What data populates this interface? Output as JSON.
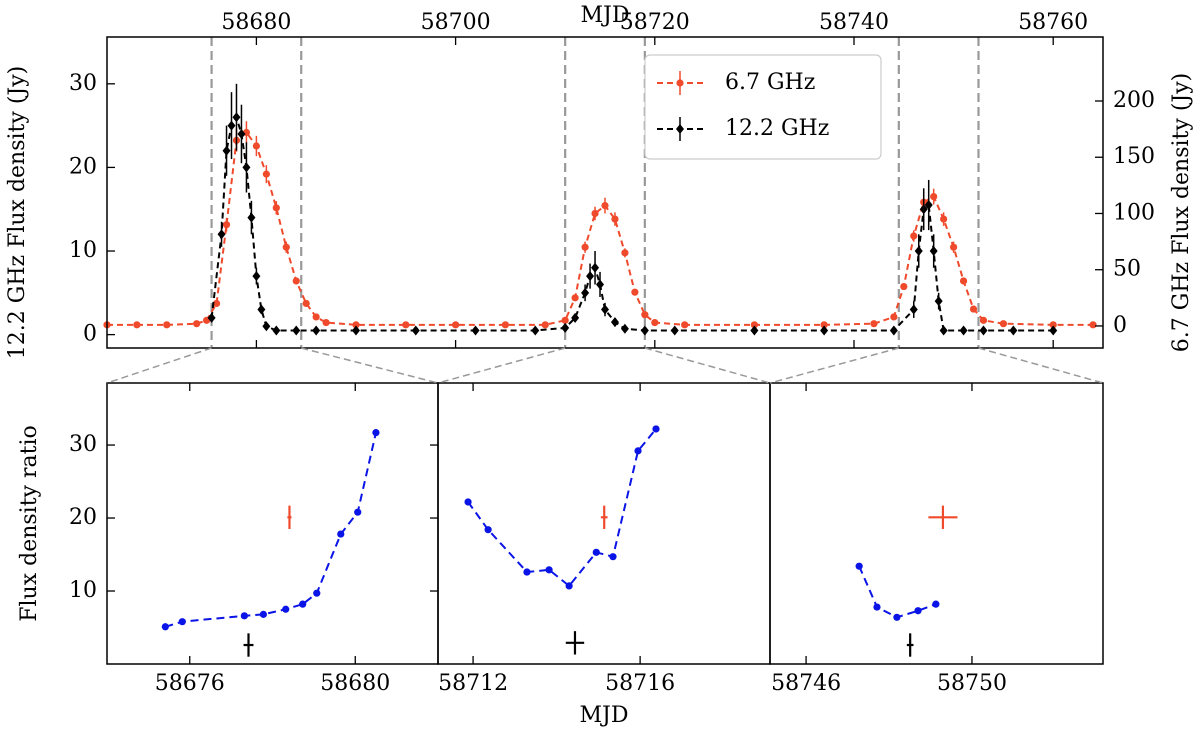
{
  "chart_data": [
    {
      "type": "line",
      "xlabel": "MJD",
      "ylabel": "12.2 GHz Flux density (Jy)",
      "y2label": "6.7 GHz Flux density (Jy)",
      "xlim": [
        58665,
        58765
      ],
      "ylim": [
        -1.6,
        35.6
      ],
      "y2lim": [
        -19.6,
        256.9
      ],
      "xticks": [
        58680,
        58700,
        58720,
        58740,
        58760
      ],
      "yticks": [
        0,
        10,
        20,
        30
      ],
      "y2ticks": [
        0,
        50,
        100,
        150,
        200
      ],
      "vlines": [
        58675.5,
        58684.5,
        58711,
        58719,
        58744.5,
        58752.5
      ],
      "legend": "upper center",
      "series": [
        {
          "name": "6.7 GHz",
          "color": "#f04a2c",
          "axis": "y2",
          "marker": "circle",
          "x": [
            58665,
            58668,
            58671,
            58674,
            58675,
            58676,
            58677,
            58678,
            58679,
            58680,
            58681,
            58682,
            58683,
            58684,
            58685,
            58686,
            58687,
            58690,
            58695,
            58700,
            58705,
            58709,
            58711,
            58712,
            58713,
            58714,
            58715,
            58716,
            58717,
            58718,
            58719,
            58720,
            58723,
            58730,
            58737,
            58742,
            58744,
            58745,
            58746,
            58747,
            58748,
            58749,
            58750,
            58751,
            58752,
            58753,
            58755,
            58760,
            58764
          ],
          "values": [
            1,
            1,
            1,
            2,
            5,
            20,
            90,
            165,
            172,
            160,
            135,
            105,
            70,
            40,
            20,
            8,
            3,
            1,
            1,
            1,
            1,
            1,
            5,
            25,
            70,
            100,
            107,
            95,
            65,
            30,
            10,
            3,
            1,
            1,
            1,
            2,
            8,
            35,
            80,
            110,
            115,
            95,
            70,
            40,
            15,
            5,
            2,
            1,
            1
          ],
          "errors": [
            1,
            1,
            1,
            1,
            1,
            2,
            6,
            10,
            10,
            9,
            8,
            6,
            5,
            3,
            2,
            1,
            1,
            1,
            1,
            1,
            1,
            1,
            1,
            2,
            5,
            6,
            7,
            6,
            4,
            2,
            1,
            1,
            1,
            1,
            1,
            1,
            1,
            3,
            5,
            7,
            7,
            6,
            5,
            3,
            2,
            1,
            1,
            1,
            1
          ]
        },
        {
          "name": "12.2 GHz",
          "color": "#000000",
          "marker": "diamond",
          "x": [
            58675.5,
            58676.5,
            58677,
            58677.5,
            58678,
            58678.5,
            58679,
            58679.5,
            58680,
            58680.5,
            58681,
            58682,
            58684,
            58686,
            58690,
            58696,
            58702,
            58708,
            58711,
            58712,
            58713,
            58713.5,
            58714,
            58714.5,
            58715,
            58716,
            58717,
            58719,
            58722,
            58730,
            58737,
            58744,
            58746,
            58746.5,
            58747,
            58747.5,
            58748,
            58748.5,
            58749,
            58751,
            58753,
            58756,
            58760
          ],
          "values": [
            2,
            12,
            22,
            25,
            26,
            24,
            20,
            14,
            7,
            3,
            1,
            0.5,
            0.5,
            0.5,
            0.5,
            0.5,
            0.5,
            0.5,
            0.8,
            2,
            5,
            7,
            8,
            6,
            3,
            1.5,
            0.7,
            0.5,
            0.5,
            0.5,
            0.5,
            0.5,
            3,
            10,
            15,
            15.5,
            10,
            4,
            0.5,
            0.5,
            0.5,
            0.5,
            0.5
          ],
          "errors": [
            0.5,
            1.5,
            3,
            4,
            4,
            3.5,
            3,
            2,
            1,
            0.5,
            0.4,
            0.4,
            0.4,
            0.4,
            0.4,
            0.4,
            0.4,
            0.4,
            0.4,
            0.5,
            1,
            1.5,
            2,
            1.5,
            0.8,
            0.5,
            0.4,
            0.4,
            0.4,
            0.4,
            0.4,
            0.4,
            1,
            2,
            2.5,
            3,
            2,
            1,
            0.4,
            0.4,
            0.4,
            0.4,
            0.4
          ]
        }
      ]
    },
    {
      "type": "line",
      "ylabel": "Flux density ratio",
      "xlim": [
        58674,
        58682
      ],
      "ylim": [
        0,
        38.5
      ],
      "xticks": [
        58676,
        58680
      ],
      "yticks": [
        10,
        20,
        30
      ],
      "series": [
        {
          "color": "#0a14e6",
          "x": [
            58675.41,
            58675.82,
            58677.32,
            58677.78,
            58678.32,
            58678.73,
            58679.07,
            58679.65,
            58680.06,
            58680.5
          ],
          "values": [
            5.1,
            5.8,
            6.6,
            6.8,
            7.5,
            8.2,
            9.7,
            17.8,
            20.8,
            31.7
          ]
        }
      ],
      "points": [
        {
          "color": "#f04a2c",
          "x": 58678.41,
          "value": 20.1,
          "xerr": 0.05,
          "yerr": 1.6
        },
        {
          "color": "#000000",
          "x": 58677.42,
          "value": 2.6,
          "xerr": 0.12,
          "yerr": 1.6
        }
      ]
    },
    {
      "type": "line",
      "xlabel": "MJD",
      "xlim": [
        58711.16,
        58719.11
      ],
      "ylim": [
        0,
        38.5
      ],
      "xticks": [
        58712,
        58716
      ],
      "series": [
        {
          "color": "#0a14e6",
          "x": [
            58711.88,
            58712.36,
            58713.29,
            58713.82,
            58714.3,
            58714.95,
            58715.35,
            58715.95,
            58716.38
          ],
          "values": [
            22.2,
            18.4,
            12.6,
            12.9,
            10.7,
            15.3,
            14.7,
            29.2,
            32.2
          ]
        }
      ],
      "points": [
        {
          "color": "#f04a2c",
          "x": 58715.14,
          "value": 20.1,
          "xerr": 0.08,
          "yerr": 1.6
        },
        {
          "color": "#000000",
          "x": 58714.44,
          "value": 2.9,
          "xerr": 0.22,
          "yerr": 1.6
        }
      ]
    },
    {
      "type": "line",
      "xlim": [
        58745.13,
        58753.16
      ],
      "ylim": [
        0,
        38.5
      ],
      "xticks": [
        58746,
        58750
      ],
      "series": [
        {
          "color": "#0a14e6",
          "x": [
            58747.28,
            58747.71,
            58748.19,
            58748.7,
            58749.13
          ],
          "values": [
            13.4,
            7.8,
            6.4,
            7.3,
            8.2
          ]
        }
      ],
      "points": [
        {
          "color": "#f04a2c",
          "x": 58749.3,
          "value": 20.1,
          "xerr": 0.35,
          "yerr": 1.6
        },
        {
          "color": "#000000",
          "x": 58748.51,
          "value": 2.6,
          "xerr": 0.08,
          "yerr": 1.6
        }
      ]
    }
  ]
}
